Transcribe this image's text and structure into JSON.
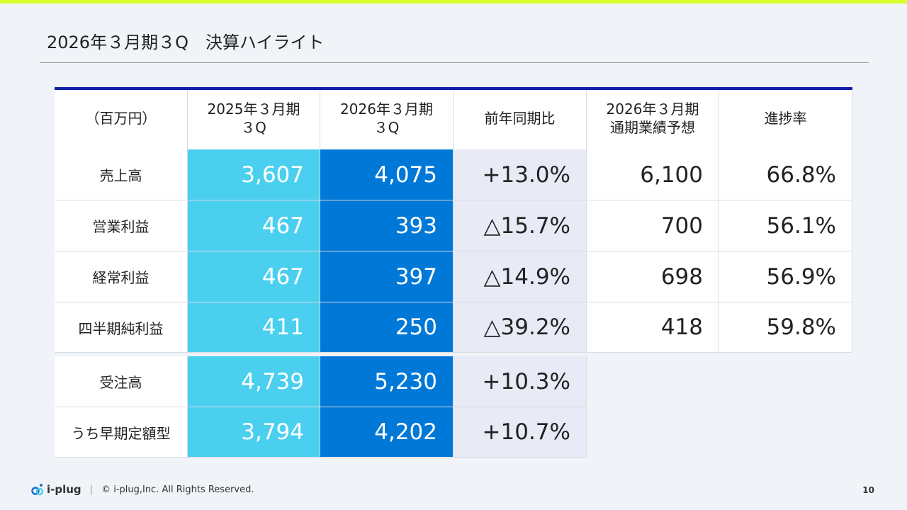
{
  "title": "2026年３月期３Q　決算ハイライト",
  "table": {
    "headers": [
      "（百万円）",
      "2025年３月期\n３Q",
      "2026年３月期\n３Q",
      "前年同期比",
      "2026年３月期\n通期業績予想",
      "進捗率"
    ],
    "rows": [
      {
        "label": "売上高",
        "prev": "3,607",
        "curr": "4,075",
        "yoy": "+13.0%",
        "forecast": "6,100",
        "progress": "66.8%"
      },
      {
        "label": "営業利益",
        "prev": "467",
        "curr": "393",
        "yoy": "△15.7%",
        "forecast": "700",
        "progress": "56.1%"
      },
      {
        "label": "経常利益",
        "prev": "467",
        "curr": "397",
        "yoy": "△14.9%",
        "forecast": "698",
        "progress": "56.9%"
      },
      {
        "label": "四半期純利益",
        "prev": "411",
        "curr": "250",
        "yoy": "△39.2%",
        "forecast": "418",
        "progress": "59.8%"
      }
    ],
    "orders": [
      {
        "label": "受注高",
        "prev": "4,739",
        "curr": "5,230",
        "yoy": "+10.3%"
      },
      {
        "label": "うち早期定額型",
        "prev": "3,794",
        "curr": "4,202",
        "yoy": "+10.7%"
      }
    ]
  },
  "footer": {
    "logo": "i-plug",
    "copyright": "© i-plug,Inc. All Rights Reserved.",
    "page": "10"
  },
  "colors": {
    "accent_bar": "#d9ff2e",
    "header_line": "#1020a8",
    "prev_col": "#4acfef",
    "curr_col": "#0078d7",
    "yoy_col": "#e8eaf5"
  }
}
